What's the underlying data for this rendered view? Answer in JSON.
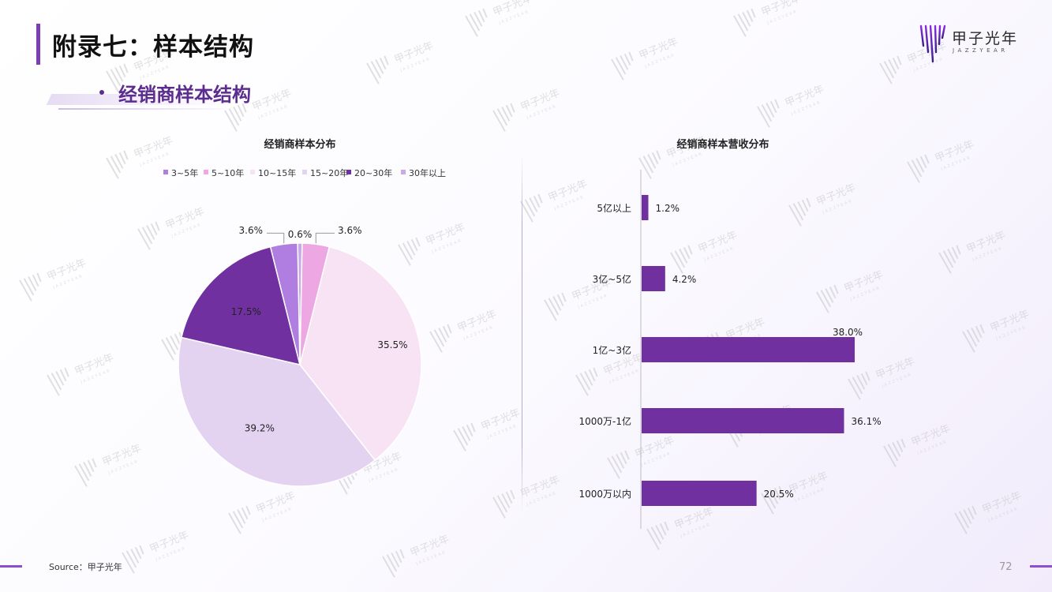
{
  "header": {
    "title": "附录七：样本结构",
    "subtitle": "经销商样本结构",
    "logo_text": "甲子光年",
    "logo_subtext": "JAZZYEAR"
  },
  "footer": {
    "source": "Source：甲子光年",
    "page_number": "72"
  },
  "colors": {
    "accent": "#7b3fb3",
    "bar": "#7030a0",
    "title_purple": "#5b2d8e"
  },
  "chart_data": [
    {
      "type": "pie",
      "title": "经销商样本分布",
      "legend_position": "top",
      "series": [
        {
          "name": "3~5年",
          "value": 3.6,
          "label": "3.6%",
          "color": "#b07ee0"
        },
        {
          "name": "5~10年",
          "value": 3.6,
          "label": "3.6%",
          "color": "#eda7e2"
        },
        {
          "name": "10~15年",
          "value": 35.5,
          "label": "35.5%",
          "color": "#f8e3f5"
        },
        {
          "name": "15~20年",
          "value": 39.2,
          "label": "39.2%",
          "color": "#e3d3f1"
        },
        {
          "name": "20~30年",
          "value": 17.5,
          "label": "17.5%",
          "color": "#7030a0"
        },
        {
          "name": "30年以上",
          "value": 0.6,
          "label": "0.6%",
          "color": "#c9a9e6"
        }
      ]
    },
    {
      "type": "bar",
      "orientation": "horizontal",
      "title": "经销商样本营收分布",
      "categories": [
        "5亿以上",
        "3亿~5亿",
        "1亿~3亿",
        "1000万-1亿",
        "1000万以内"
      ],
      "values": [
        1.2,
        4.2,
        38.0,
        36.1,
        20.5
      ],
      "labels": [
        "1.2%",
        "4.2%",
        "38.0%",
        "36.1%",
        "20.5%"
      ],
      "xlim": [
        0,
        38.0
      ]
    }
  ]
}
